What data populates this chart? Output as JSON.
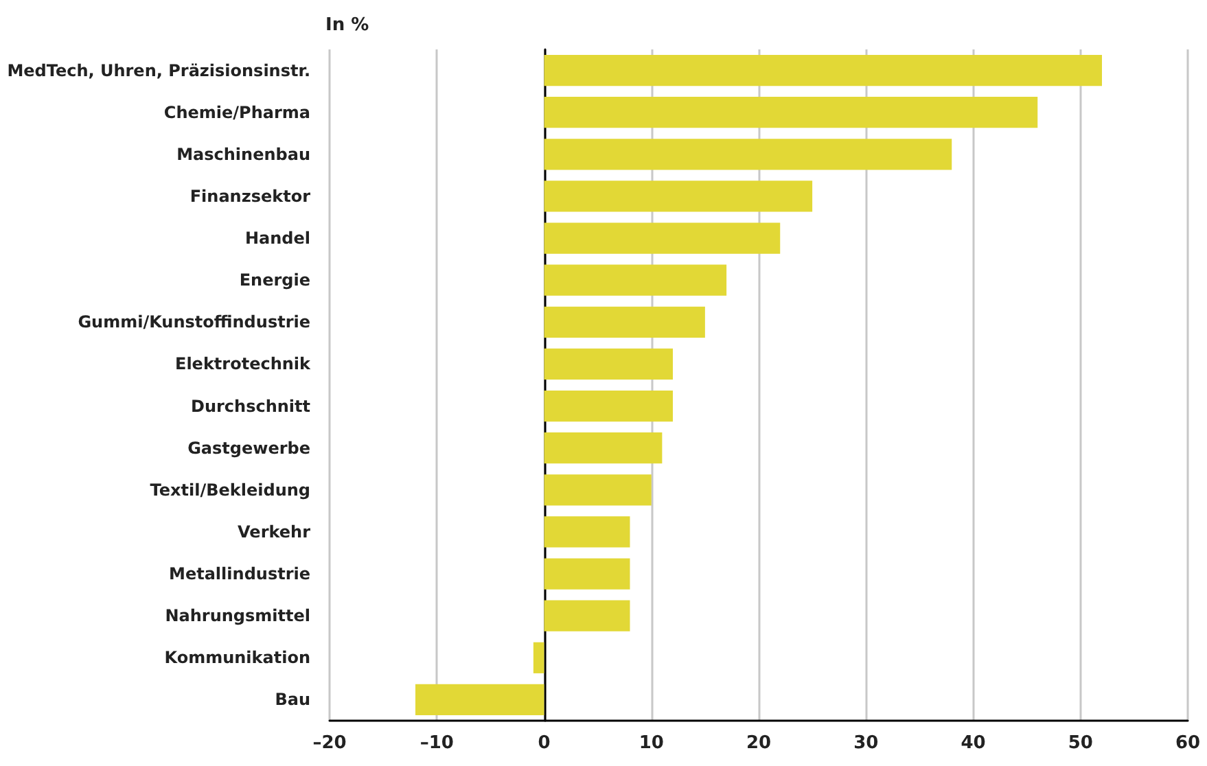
{
  "chart_data": {
    "type": "bar",
    "orientation": "horizontal",
    "xlabel": "In %",
    "categories": [
      "MedTech, Uhren, Präzisionsinstr.",
      "Chemie/Pharma",
      "Maschinenbau",
      "Finanzsektor",
      "Handel",
      "Energie",
      "Gummi/Kunstoffindustrie",
      "Elektrotechnik",
      "Durchschnitt",
      "Gastgewerbe",
      "Textil/Bekleidung",
      "Verkehr",
      "Metallindustrie",
      "Nahrungsmittel",
      "Kommunikation",
      "Bau"
    ],
    "values": [
      52,
      46,
      38,
      25,
      22,
      17,
      15,
      12,
      12,
      11,
      10,
      8,
      8,
      8,
      -1,
      -12
    ],
    "color": "#e2d836",
    "xlim": [
      -20,
      60
    ],
    "xticks": [
      {
        "value": -20,
        "label": "–20"
      },
      {
        "value": -10,
        "label": "–10"
      },
      0,
      10,
      20,
      30,
      40,
      50,
      60
    ],
    "grid": "x"
  }
}
